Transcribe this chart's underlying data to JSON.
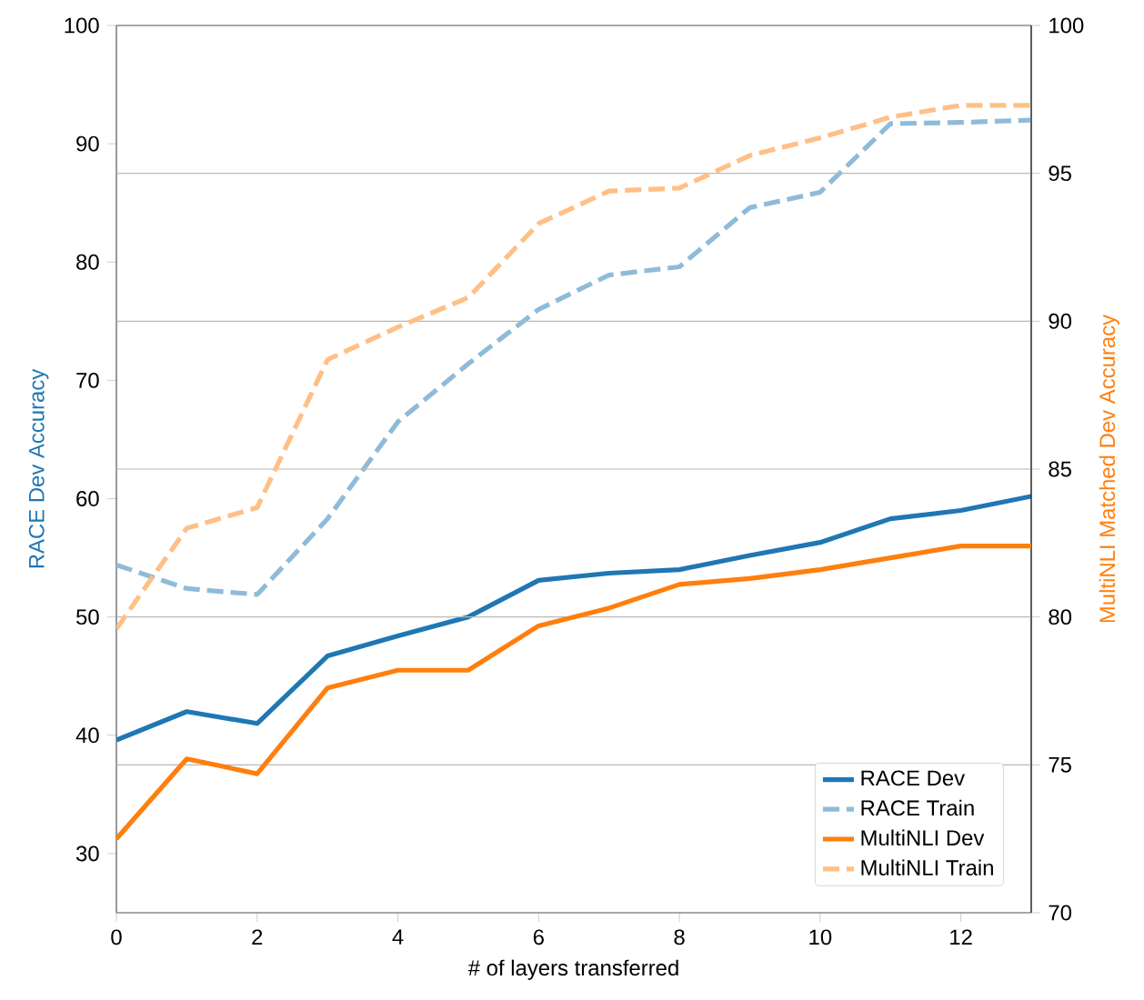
{
  "chart_data": {
    "type": "line",
    "xlabel": "# of layers transferred",
    "ylabel": "RACE Dev Accuracy",
    "y2label": "MultiNLI Matched Dev Accuracy",
    "x": [
      0,
      1,
      2,
      3,
      4,
      5,
      6,
      7,
      8,
      9,
      10,
      11,
      12,
      13
    ],
    "xlim": [
      0,
      13
    ],
    "xticks": [
      0,
      2,
      4,
      6,
      8,
      10,
      12
    ],
    "ylim": [
      25,
      100
    ],
    "yticks": [
      30,
      40,
      50,
      60,
      70,
      80,
      90,
      100
    ],
    "y2lim": [
      70,
      100
    ],
    "y2ticks": [
      70,
      75,
      80,
      85,
      90,
      95,
      100
    ],
    "grid": "y",
    "legend": "bottom right",
    "series": [
      {
        "name": "RACE Dev",
        "color": "#1f77b4",
        "line_style": "solid",
        "values": [
          39.6,
          42,
          41,
          46.7,
          48.4,
          50,
          53.1,
          53.7,
          54,
          55.2,
          56.3,
          58.3,
          59,
          60.2
        ]
      },
      {
        "name": "RACE Train",
        "color": "#8fbbd9",
        "line_style": "dashed",
        "values": [
          54.4,
          52.4,
          51.9,
          58.3,
          66.5,
          71.4,
          76,
          78.9,
          79.6,
          84.6,
          85.9,
          91.7,
          91.8,
          92
        ]
      },
      {
        "name": "MultiNLI Dev",
        "color": "#ff7f0e",
        "line_style": "solid",
        "axis": "y2",
        "values": [
          72.5,
          75.2,
          74.7,
          77.6,
          78.2,
          78.2,
          79.7,
          80.3,
          81.1,
          81.3,
          81.6,
          82.0,
          82.4,
          82.4
        ]
      },
      {
        "name": "MultiNLI Train",
        "color": "#ffbf86",
        "line_style": "dashed",
        "axis": "y2",
        "values": [
          79.6,
          83.0,
          83.7,
          88.7,
          89.8,
          90.8,
          93.3,
          94.4,
          94.5,
          95.6,
          96.2,
          96.9,
          97.3,
          97.3
        ]
      }
    ]
  }
}
